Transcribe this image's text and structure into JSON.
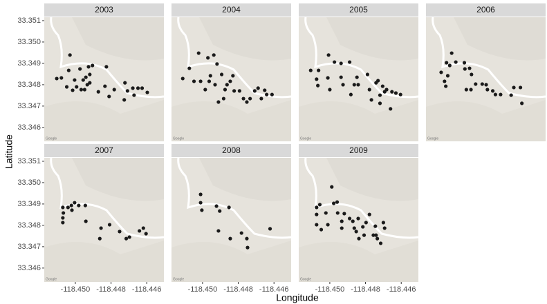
{
  "chart_data": {
    "type": "scatter",
    "xlabel": "Longitude",
    "ylabel": "Latitude",
    "attribution": "Google",
    "color": "#1a1a1a",
    "xlim": [
      -118.45174,
      -118.44504
    ],
    "ylim": [
      33.34535,
      33.35116
    ],
    "xticks": [
      {
        "value": -118.45,
        "label": "-118.450"
      },
      {
        "value": -118.448,
        "label": "-118.448"
      },
      {
        "value": -118.446,
        "label": "-118.446"
      }
    ],
    "yticks": [
      33.346,
      33.347,
      33.348,
      33.349,
      {
        "value": 33.35,
        "label": "33.350"
      },
      33.351
    ],
    "panels": [
      {
        "title": "2003",
        "x": [
          -118.45104,
          -118.45078,
          -118.4503,
          -118.45037,
          -118.45048,
          -118.45015,
          -118.45004,
          -118.44993,
          -118.44974,
          -118.44967,
          -118.44956,
          -118.44948,
          -118.44941,
          -118.44933,
          -118.44926,
          -118.44919,
          -118.44919,
          -118.44904,
          -118.44871,
          -118.44826,
          -118.44834,
          -118.44811,
          -118.44782,
          -118.44726,
          -118.44722,
          -118.44708,
          -118.44678,
          -118.44671,
          -118.44649,
          -118.44626,
          -118.44597
        ],
        "y": [
          33.34829,
          33.34832,
          33.34939,
          33.34867,
          33.3479,
          33.34774,
          33.34822,
          33.3479,
          33.34874,
          33.34777,
          33.34822,
          33.34777,
          33.34835,
          33.348,
          33.34884,
          33.34848,
          33.34809,
          33.3489,
          33.34767,
          33.34884,
          33.34793,
          33.34745,
          33.34777,
          33.34729,
          33.34809,
          33.34771,
          33.34784,
          33.34751,
          33.34784,
          33.34784,
          33.34764
        ]
      },
      {
        "title": "2004",
        "x": [
          -118.45111,
          -118.45074,
          -118.45048,
          -118.45011,
          -118.45022,
          -118.4497,
          -118.44963,
          -118.44985,
          -118.44956,
          -118.44937,
          -118.4493,
          -118.44919,
          -118.44911,
          -118.44893,
          -118.44882,
          -118.44874,
          -118.44863,
          -118.44845,
          -118.4483,
          -118.44823,
          -118.44793,
          -118.44771,
          -118.44752,
          -118.44734,
          -118.44708,
          -118.44689,
          -118.44671,
          -118.44652,
          -118.44641,
          -118.44611
        ],
        "y": [
          33.34829,
          33.34877,
          33.34816,
          33.34816,
          33.34948,
          33.34926,
          33.34816,
          33.34777,
          33.34842,
          33.34939,
          33.348,
          33.34897,
          33.34719,
          33.34848,
          33.34735,
          33.34777,
          33.348,
          33.34816,
          33.34842,
          33.34771,
          33.34771,
          33.34735,
          33.34719,
          33.34735,
          33.34771,
          33.34784,
          33.34735,
          33.34774,
          33.34754,
          33.34754
        ]
      },
      {
        "title": "2005",
        "x": [
          -118.45107,
          -118.45063,
          -118.45074,
          -118.45067,
          -118.45007,
          -118.45011,
          -118.45,
          -118.44974,
          -118.44937,
          -118.44937,
          -118.44926,
          -118.44889,
          -118.44882,
          -118.44863,
          -118.44841,
          -118.44848,
          -118.44789,
          -118.44778,
          -118.44767,
          -118.44741,
          -118.4473,
          -118.44719,
          -118.44719,
          -118.44704,
          -118.44693,
          -118.44682,
          -118.4466,
          -118.44652,
          -118.4463,
          -118.44604
        ],
        "y": [
          33.34867,
          33.34867,
          33.34826,
          33.34796,
          33.34939,
          33.34832,
          33.34777,
          33.34906,
          33.349,
          33.34835,
          33.348,
          33.34906,
          33.34754,
          33.348,
          33.348,
          33.34835,
          33.34848,
          33.34777,
          33.34729,
          33.34809,
          33.34819,
          33.34751,
          33.34713,
          33.34793,
          33.34767,
          33.34777,
          33.34687,
          33.34767,
          33.34761,
          33.34754
        ]
      },
      {
        "title": "2006",
        "x": [
          -118.45089,
          -118.4507,
          -118.45063,
          -118.45059,
          -118.4503,
          -118.45041,
          -118.45052,
          -118.45007,
          -118.44959,
          -118.44956,
          -118.4493,
          -118.44919,
          -118.44948,
          -118.44922,
          -118.44896,
          -118.44859,
          -118.44837,
          -118.4483,
          -118.448,
          -118.44785,
          -118.44756,
          -118.44697,
          -118.44682,
          -118.44645,
          -118.44637
        ],
        "y": [
          33.34858,
          33.34816,
          33.34793,
          33.34903,
          33.34948,
          33.3489,
          33.34842,
          33.34906,
          33.34903,
          33.34874,
          33.34877,
          33.34848,
          33.34777,
          33.34777,
          33.34803,
          33.34803,
          33.348,
          33.34777,
          33.34771,
          33.34754,
          33.34754,
          33.34751,
          33.34787,
          33.34787,
          33.34713
        ]
      },
      {
        "title": "2007",
        "x": [
          -118.4507,
          -118.45067,
          -118.4507,
          -118.4507,
          -118.45041,
          -118.45022,
          -118.45019,
          -118.45004,
          -118.44981,
          -118.44944,
          -118.44941,
          -118.44863,
          -118.44856,
          -118.44808,
          -118.44752,
          -118.44715,
          -118.44697,
          -118.44641,
          -118.44619,
          -118.44604
        ],
        "y": [
          33.34884,
          33.34858,
          33.34835,
          33.34813,
          33.34884,
          33.34893,
          33.34871,
          33.34906,
          33.34893,
          33.34893,
          33.34819,
          33.34738,
          33.34787,
          33.34803,
          33.34771,
          33.34738,
          33.34745,
          33.34774,
          33.34787,
          33.34761
        ]
      },
      {
        "title": "2008",
        "x": [
          -118.45011,
          -118.45011,
          -118.45004,
          -118.44922,
          -118.44911,
          -118.44904,
          -118.44852,
          -118.44845,
          -118.44782,
          -118.44752,
          -118.44748,
          -118.44622
        ],
        "y": [
          33.34945,
          33.34906,
          33.34871,
          33.3489,
          33.34774,
          33.34867,
          33.34884,
          33.34738,
          33.34764,
          33.34738,
          33.34696,
          33.34784
        ]
      },
      {
        "title": "2009",
        "x": [
          -118.45074,
          -118.45074,
          -118.45074,
          -118.45056,
          -118.45048,
          -118.45022,
          -118.45011,
          -118.44989,
          -118.44978,
          -118.44959,
          -118.44956,
          -118.44933,
          -118.44933,
          -118.44919,
          -118.44889,
          -118.44871,
          -118.44863,
          -118.44852,
          -118.44841,
          -118.44837,
          -118.44815,
          -118.44808,
          -118.44797,
          -118.44778,
          -118.44756,
          -118.44745,
          -118.44741,
          -118.44734,
          -118.44715,
          -118.447,
          -118.44693
        ],
        "y": [
          33.34884,
          33.34851,
          33.34803,
          33.34897,
          33.3478,
          33.34858,
          33.34803,
          33.3498,
          33.34903,
          33.34909,
          33.34858,
          33.34819,
          33.34787,
          33.34855,
          33.34832,
          33.34819,
          33.34787,
          33.34771,
          33.34832,
          33.34738,
          33.34793,
          33.34754,
          33.34813,
          33.34851,
          33.34754,
          33.34796,
          33.34754,
          33.34738,
          33.34716,
          33.34813,
          33.34787
        ]
      }
    ]
  }
}
